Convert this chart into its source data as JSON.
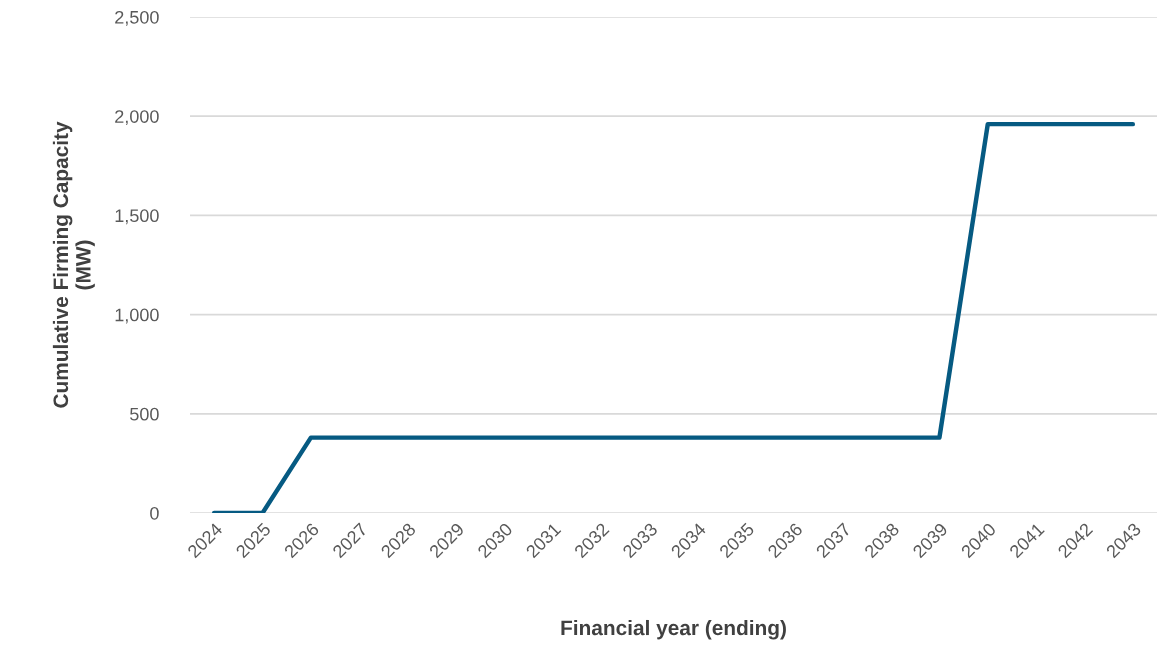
{
  "chart_data": {
    "type": "line",
    "xlabel": "Financial year (ending)",
    "ylabel": "Cumulative Firming Capacity\n(MW)",
    "categories": [
      "2024",
      "2025",
      "2026",
      "2027",
      "2028",
      "2029",
      "2030",
      "2031",
      "2032",
      "2033",
      "2034",
      "2035",
      "2036",
      "2037",
      "2038",
      "2039",
      "2040",
      "2041",
      "2042",
      "2043"
    ],
    "series": [
      {
        "color": "#065a82",
        "values": [
          0,
          0,
          380,
          380,
          380,
          380,
          380,
          380,
          380,
          380,
          380,
          380,
          380,
          380,
          380,
          380,
          1960,
          1960,
          1960,
          1960
        ]
      }
    ],
    "ylim": [
      0,
      2500
    ],
    "yticks": [
      {
        "value": 0,
        "label": "0"
      },
      {
        "value": 500,
        "label": "500"
      },
      {
        "value": 1000,
        "label": "1,000"
      },
      {
        "value": 1500,
        "label": "1,500"
      },
      {
        "value": 2000,
        "label": "2,000"
      },
      {
        "value": 2500,
        "label": "2,500"
      }
    ],
    "grid": "y",
    "line_style": "solid"
  }
}
